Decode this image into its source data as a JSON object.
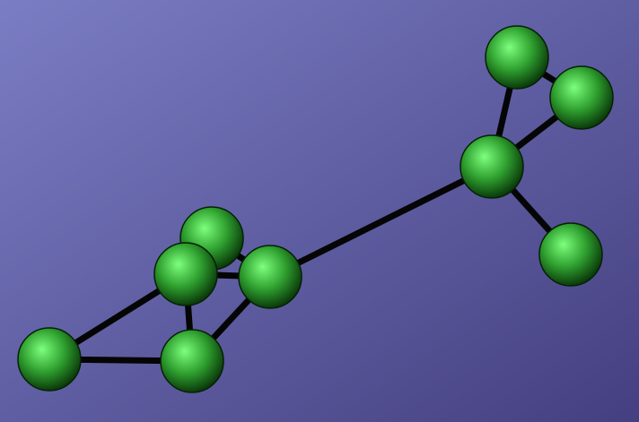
{
  "graph": {
    "colors": {
      "background_top_left": "#7b7dc4",
      "background_bottom_right": "#443f80",
      "edge": "#050505",
      "node_highlight": "#7dff7d",
      "node_mid": "#2fa02f",
      "node_shadow": "#0b3b0b",
      "node_outline": "#062006"
    },
    "nodes": [
      {
        "id": "n1"
      },
      {
        "id": "n2"
      },
      {
        "id": "n3"
      },
      {
        "id": "n4"
      },
      {
        "id": "n5"
      },
      {
        "id": "n6"
      },
      {
        "id": "n7"
      },
      {
        "id": "n8"
      },
      {
        "id": "n9"
      },
      {
        "id": "n10"
      }
    ],
    "edges": [
      {
        "source": "n1",
        "target": "n2"
      },
      {
        "source": "n1",
        "target": "n5"
      },
      {
        "source": "n2",
        "target": "n3"
      },
      {
        "source": "n3",
        "target": "n4"
      },
      {
        "source": "n4",
        "target": "n5"
      },
      {
        "source": "n4",
        "target": "n6"
      },
      {
        "source": "n3",
        "target": "n6"
      },
      {
        "source": "n6",
        "target": "n7"
      },
      {
        "source": "n7",
        "target": "n8"
      },
      {
        "source": "n8",
        "target": "n9"
      },
      {
        "source": "n7",
        "target": "n9"
      },
      {
        "source": "n7",
        "target": "n10"
      }
    ]
  }
}
